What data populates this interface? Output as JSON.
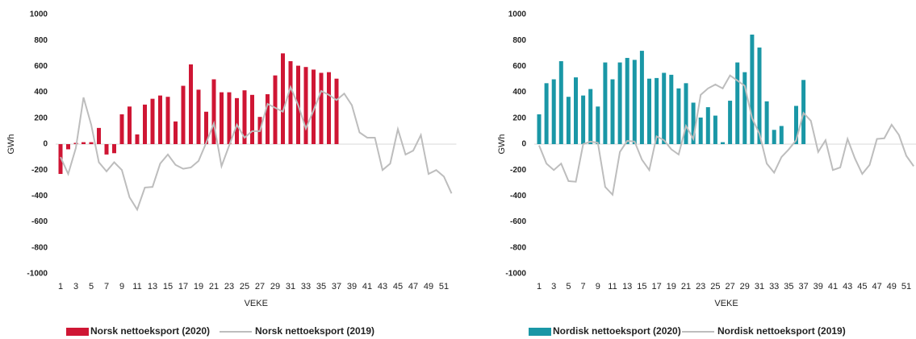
{
  "chart_data": [
    {
      "type": "bar",
      "y_label": "GWh",
      "x_label": "VEKE",
      "categories": [
        "1",
        null,
        "3",
        null,
        "5",
        null,
        "7",
        null,
        "9",
        null,
        "11",
        null,
        "13",
        null,
        "15",
        null,
        "17",
        null,
        "19",
        null,
        "21",
        null,
        "23",
        null,
        "25",
        null,
        "27",
        null,
        "29",
        null,
        "31",
        null,
        "33",
        null,
        "35",
        null,
        "37",
        null,
        "39",
        null,
        "41",
        null,
        "43",
        null,
        "45",
        null,
        "47",
        null,
        "49",
        null,
        "51",
        null
      ],
      "ylim": [
        -1000,
        1000
      ],
      "yticks": [
        -1000,
        -800,
        -600,
        -400,
        -200,
        0,
        200,
        400,
        600,
        800,
        1000
      ],
      "series": [
        {
          "name": "Norsk nettoeksport (2020)",
          "type": "bar",
          "color": "#cf1634",
          "values": [
            -230,
            -40,
            10,
            15,
            15,
            125,
            -80,
            -70,
            230,
            290,
            75,
            305,
            350,
            375,
            365,
            175,
            450,
            615,
            420,
            250,
            500,
            400,
            400,
            355,
            415,
            380,
            210,
            385,
            530,
            700,
            640,
            605,
            595,
            575,
            550,
            555,
            505,
            null,
            null,
            null,
            null,
            null,
            null,
            null,
            null,
            null,
            null,
            null,
            null,
            null,
            null,
            null
          ]
        },
        {
          "name": "Norsk nettoeksport (2019)",
          "type": "line",
          "color": "#bdbdbd",
          "values": [
            -100,
            -230,
            -30,
            360,
            150,
            -140,
            -210,
            -140,
            -200,
            -410,
            -505,
            -335,
            -330,
            -150,
            -80,
            -160,
            -190,
            -180,
            -130,
            10,
            160,
            -170,
            -10,
            150,
            50,
            100,
            100,
            310,
            280,
            250,
            440,
            300,
            120,
            260,
            410,
            380,
            340,
            390,
            300,
            90,
            50,
            50,
            -200,
            -150,
            115,
            -80,
            -50,
            70,
            -230,
            -200,
            -250,
            -380
          ]
        }
      ]
    },
    {
      "type": "bar",
      "y_label": "GWh",
      "x_label": "VEKE",
      "categories": [
        "1",
        null,
        "3",
        null,
        "5",
        null,
        "7",
        null,
        "9",
        null,
        "11",
        null,
        "13",
        null,
        "15",
        null,
        "17",
        null,
        "19",
        null,
        "21",
        null,
        "23",
        null,
        "25",
        null,
        "27",
        null,
        "29",
        null,
        "31",
        null,
        "33",
        null,
        "35",
        null,
        "37",
        null,
        "39",
        null,
        "41",
        null,
        "43",
        null,
        "45",
        null,
        "47",
        null,
        "49",
        null,
        "51",
        null
      ],
      "ylim": [
        -1000,
        1000
      ],
      "yticks": [
        -1000,
        -800,
        -600,
        -400,
        -200,
        0,
        200,
        400,
        600,
        800,
        1000
      ],
      "series": [
        {
          "name": "Nordisk nettoeksport (2020)",
          "type": "bar",
          "color": "#1a97a6",
          "values": [
            230,
            470,
            500,
            640,
            365,
            515,
            375,
            425,
            290,
            630,
            500,
            630,
            665,
            650,
            720,
            505,
            510,
            550,
            535,
            430,
            470,
            320,
            205,
            285,
            220,
            15,
            335,
            630,
            555,
            845,
            745,
            330,
            110,
            140,
            null,
            295,
            495,
            null,
            null,
            null,
            null,
            null,
            null,
            null,
            null,
            null,
            null,
            null,
            null,
            null,
            null,
            null
          ]
        },
        {
          "name": "Nordisk nettoeksport (2019)",
          "type": "line",
          "color": "#bdbdbd",
          "values": [
            -10,
            -150,
            -200,
            -150,
            -285,
            -290,
            0,
            20,
            10,
            -330,
            -390,
            -60,
            25,
            20,
            -120,
            -200,
            60,
            30,
            -40,
            -80,
            140,
            40,
            380,
            430,
            460,
            430,
            530,
            490,
            450,
            200,
            80,
            -150,
            -220,
            -100,
            -40,
            30,
            240,
            180,
            -60,
            30,
            -200,
            -180,
            40,
            -110,
            -230,
            -160,
            40,
            45,
            150,
            70,
            -90,
            -170
          ]
        }
      ]
    }
  ]
}
